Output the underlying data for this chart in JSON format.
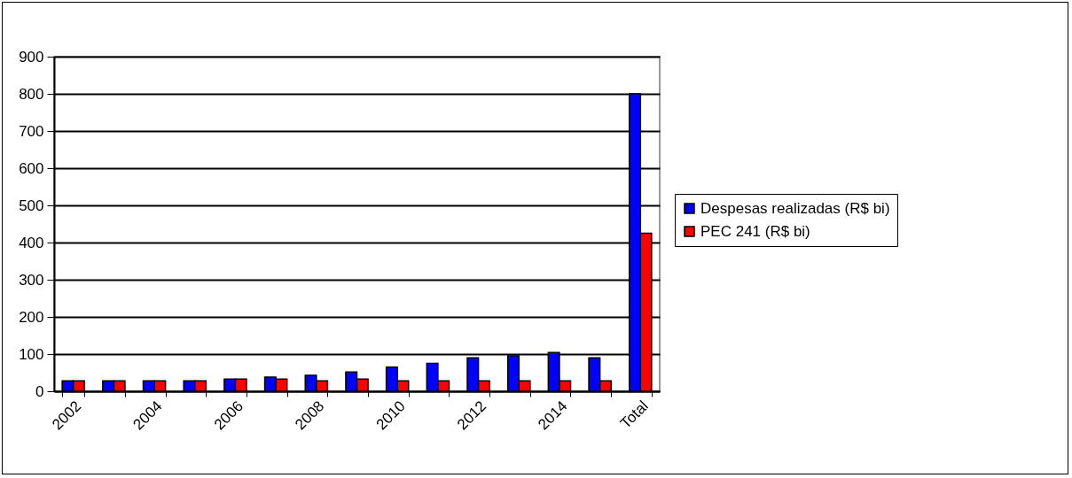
{
  "chart_data": {
    "type": "bar",
    "categories": [
      "2002",
      null,
      "2004",
      null,
      "2006",
      null,
      "2008",
      null,
      "2010",
      null,
      "2012",
      null,
      "2014",
      null,
      "Total"
    ],
    "series": [
      {
        "name": "Despesas realizadas (R$ bi)",
        "color": "#0000ff",
        "values": [
          28,
          28,
          28,
          28,
          33,
          38,
          43,
          52,
          65,
          75,
          90,
          95,
          104,
          90,
          800
        ]
      },
      {
        "name": "PEC 241  (R$ bi)",
        "color": "#ff0000",
        "values": [
          28,
          28,
          28,
          28,
          33,
          33,
          28,
          33,
          28,
          28,
          28,
          28,
          28,
          28,
          425
        ]
      }
    ],
    "ylim": [
      0,
      900
    ],
    "yticks": [
      0,
      100,
      200,
      300,
      400,
      500,
      600,
      700,
      800,
      900
    ],
    "grid": "y",
    "legend": "right"
  }
}
